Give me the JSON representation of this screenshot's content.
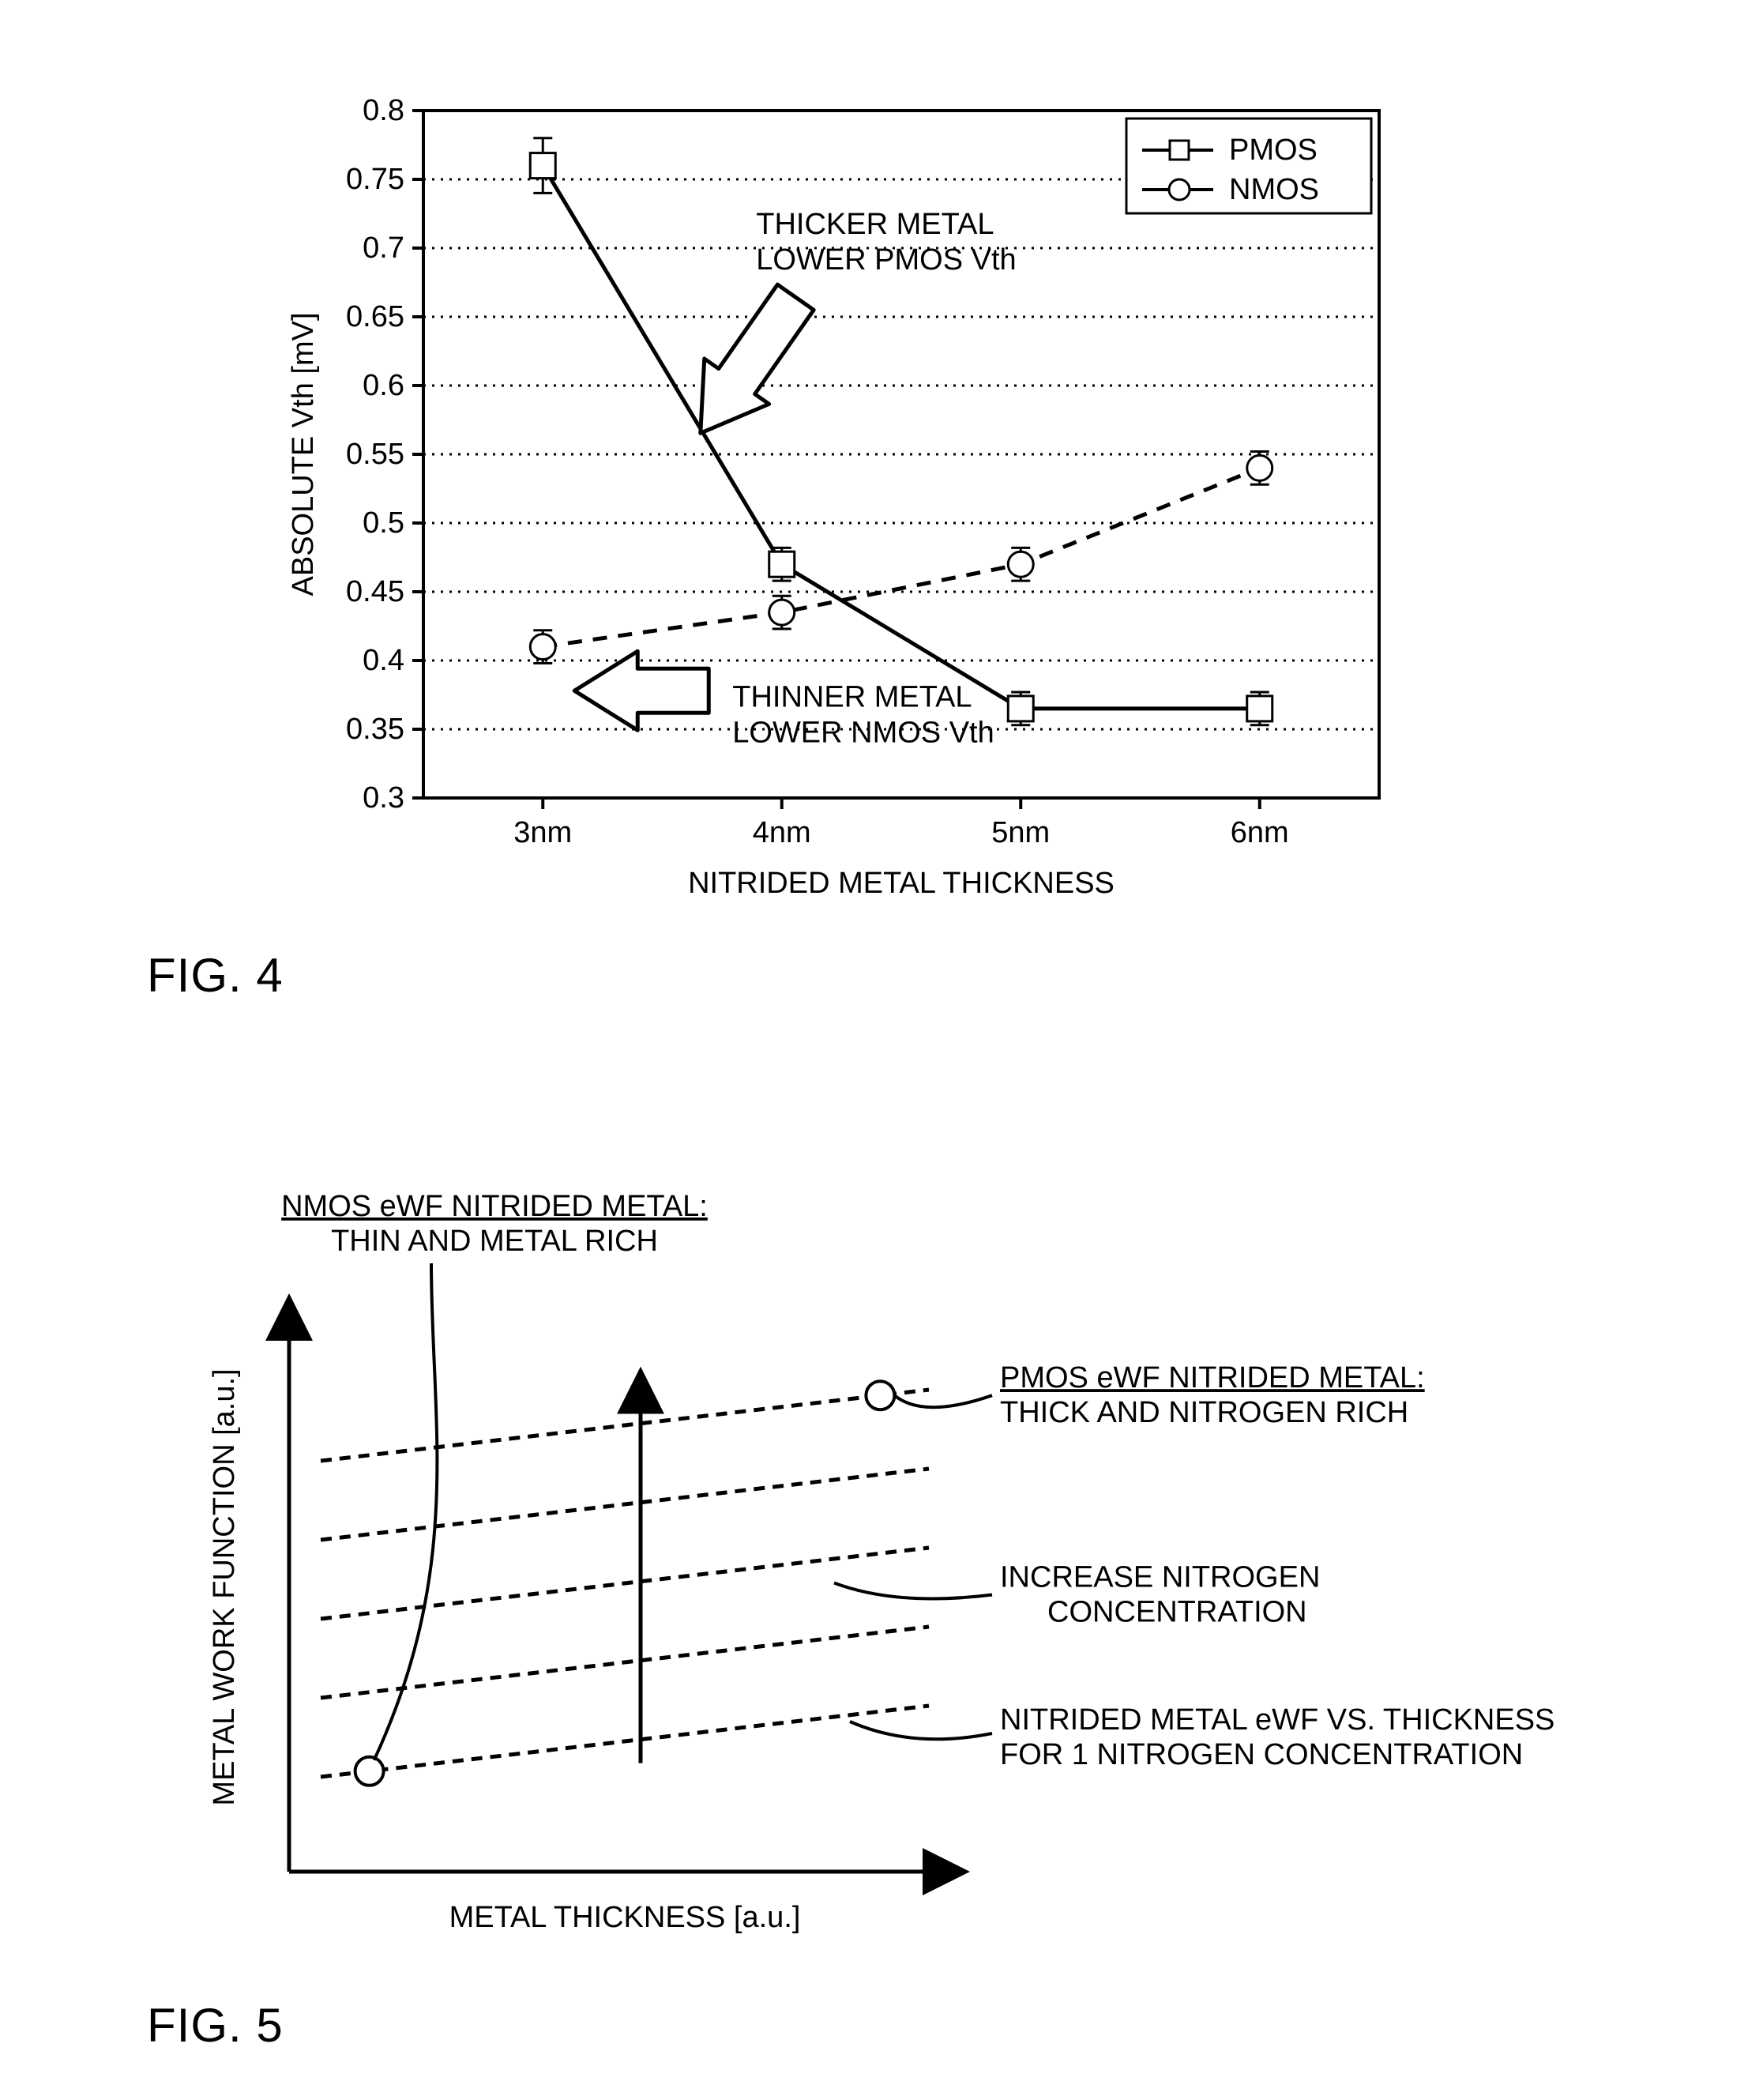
{
  "fig4": {
    "label": "FIG. 4",
    "chart": {
      "type": "line",
      "x_ticks": [
        "3nm",
        "4nm",
        "5nm",
        "6nm"
      ],
      "y_min": 0.3,
      "y_max": 0.8,
      "y_tick_step": 0.05,
      "y_ticks": [
        0.3,
        0.35,
        0.4,
        0.45,
        0.5,
        0.55,
        0.6,
        0.65,
        0.7,
        0.75,
        0.8
      ],
      "y_label": "ABSOLUTE Vth [mV]",
      "x_label": "NITRIDED METAL THICKNESS",
      "grid_color": "#000000",
      "grid_dash": "3,8",
      "axis_color": "#000000",
      "axis_width": 4,
      "background_color": "#ffffff",
      "tick_fontsize": 38,
      "axis_label_fontsize": 38,
      "legend": {
        "items": [
          {
            "label": "PMOS",
            "marker": "square"
          },
          {
            "label": "NMOS",
            "marker": "circle"
          }
        ],
        "fontsize": 38,
        "border_color": "#000000"
      },
      "series": [
        {
          "name": "PMOS",
          "marker": "square",
          "line_dash": "none",
          "line_width": 5,
          "marker_size": 16,
          "color": "#000000",
          "fill": "#ffffff",
          "values": [
            0.76,
            0.47,
            0.365,
            0.365
          ],
          "err": [
            0.02,
            0.012,
            0.012,
            0.012
          ]
        },
        {
          "name": "NMOS",
          "marker": "circle",
          "line_dash": "18,14",
          "line_width": 5,
          "marker_size": 16,
          "color": "#000000",
          "fill": "#ffffff",
          "values": [
            0.41,
            0.435,
            0.47,
            0.54
          ],
          "err": [
            0.012,
            0.012,
            0.012,
            0.012
          ]
        }
      ],
      "annotations": {
        "thicker": {
          "line1": "THICKER METAL",
          "line2": "LOWER PMOS Vth",
          "fontsize": 38
        },
        "thinner": {
          "line1": "THINNER METAL",
          "line2": "LOWER NMOS Vth",
          "fontsize": 38
        }
      }
    }
  },
  "fig5": {
    "label": "FIG. 5",
    "chart": {
      "type": "line",
      "y_label": "METAL WORK FUNCTION [a.u.]",
      "x_label": "METAL THICKNESS [a.u.]",
      "axis_color": "#000000",
      "axis_width": 5,
      "background_color": "#ffffff",
      "axis_label_fontsize": 38,
      "annotation_fontsize": 38,
      "line_count": 5,
      "line_dash": "14,10",
      "line_width": 5,
      "line_color": "#000000",
      "marker_size": 18,
      "marker_fill": "#ffffff",
      "marker_stroke": "#000000",
      "annotations": {
        "nmos": {
          "line1": "NMOS eWF NITRIDED METAL:",
          "line2": "THIN AND METAL RICH"
        },
        "pmos": {
          "line1": "PMOS eWF NITRIDED METAL:",
          "line2": "THICK AND NITROGEN RICH"
        },
        "increase": {
          "line1": "INCREASE NITROGEN",
          "line2": "CONCENTRATION"
        },
        "ewf_vs": {
          "line1": "NITRIDED METAL eWF VS. THICKNESS",
          "line2": "FOR 1 NITROGEN CONCENTRATION"
        }
      }
    }
  }
}
